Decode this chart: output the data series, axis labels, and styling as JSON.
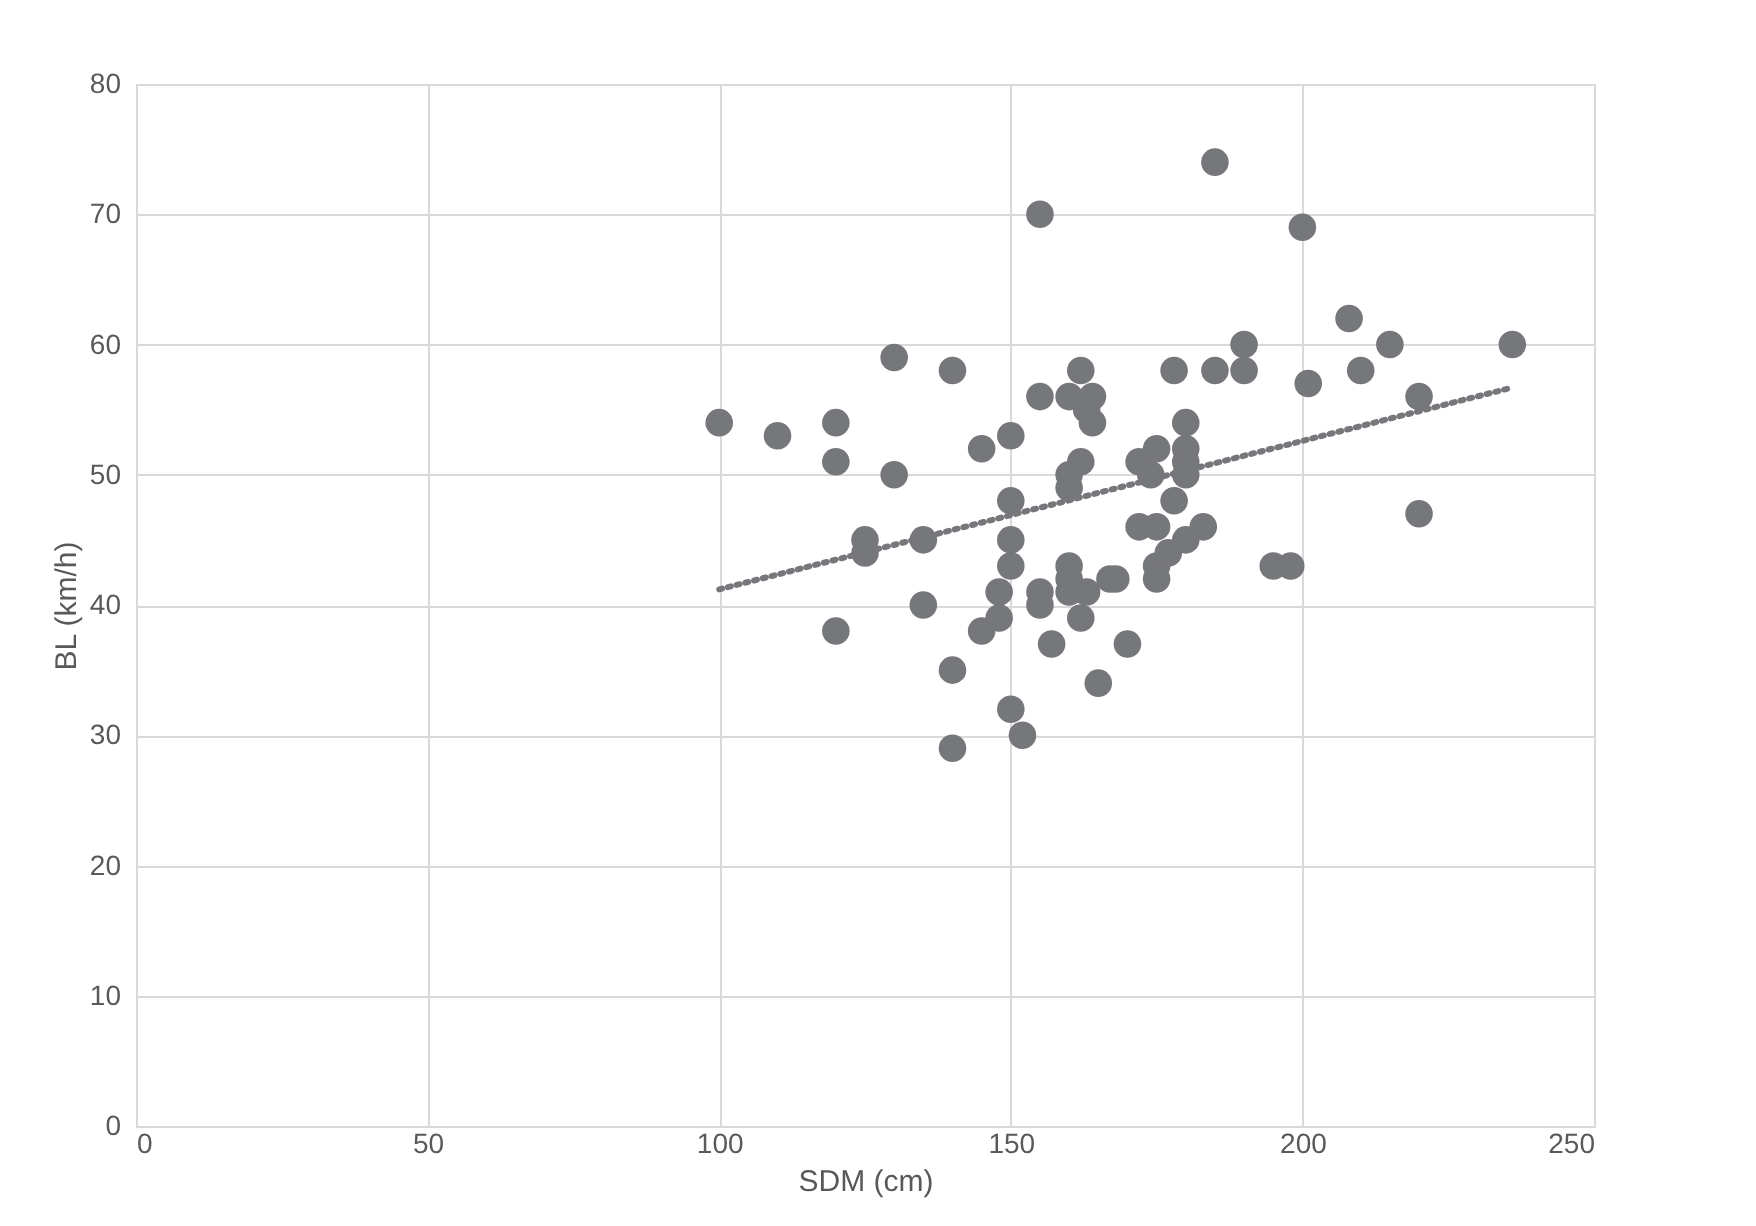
{
  "chart_data": {
    "type": "scatter",
    "xlabel": "SDM (cm)",
    "ylabel": "BL (km/h)",
    "xlim": [
      0,
      250
    ],
    "xticks": [
      0,
      50,
      100,
      150,
      200,
      250
    ],
    "ylim": [
      0,
      80
    ],
    "yticks": [
      0,
      10,
      20,
      30,
      40,
      50,
      60,
      70,
      80
    ],
    "grid": true,
    "series": [
      {
        "color": "#76777b",
        "marker": "circle",
        "x": [
          100,
          110,
          120,
          120,
          120,
          125,
          125,
          130,
          130,
          135,
          135,
          140,
          140,
          140,
          145,
          145,
          148,
          148,
          150,
          150,
          150,
          150,
          150,
          152,
          155,
          155,
          155,
          155,
          157,
          160,
          160,
          160,
          160,
          160,
          160,
          162,
          162,
          162,
          163,
          164,
          164,
          163,
          165,
          167,
          168,
          170,
          172,
          172,
          174,
          175,
          175,
          175,
          175,
          177,
          178,
          178,
          180,
          180,
          180,
          180,
          180,
          183,
          185,
          185,
          190,
          190,
          195,
          198,
          200,
          201,
          208,
          210,
          215,
          220,
          220,
          236
        ],
        "values": [
          54,
          53,
          54,
          51,
          38,
          45,
          44,
          59,
          50,
          45,
          40,
          58,
          35,
          29,
          52,
          38,
          41,
          39,
          53,
          48,
          45,
          43,
          32,
          30,
          70,
          56,
          41,
          40,
          37,
          56,
          50,
          49,
          43,
          42,
          41,
          58,
          51,
          39,
          55,
          56,
          54,
          41,
          34,
          42,
          42,
          37,
          51,
          46,
          50,
          52,
          46,
          43,
          42,
          44,
          58,
          48,
          54,
          52,
          51,
          50,
          45,
          46,
          74,
          58,
          60,
          58,
          43,
          43,
          69,
          57,
          62,
          58,
          60,
          56,
          47,
          60
        ]
      },
      {
        "type": "line",
        "color": "#76777b",
        "line_style": "dotted",
        "marker": "none",
        "x": [
          100,
          236
        ],
        "values": [
          41.2,
          56.7
        ]
      }
    ]
  }
}
